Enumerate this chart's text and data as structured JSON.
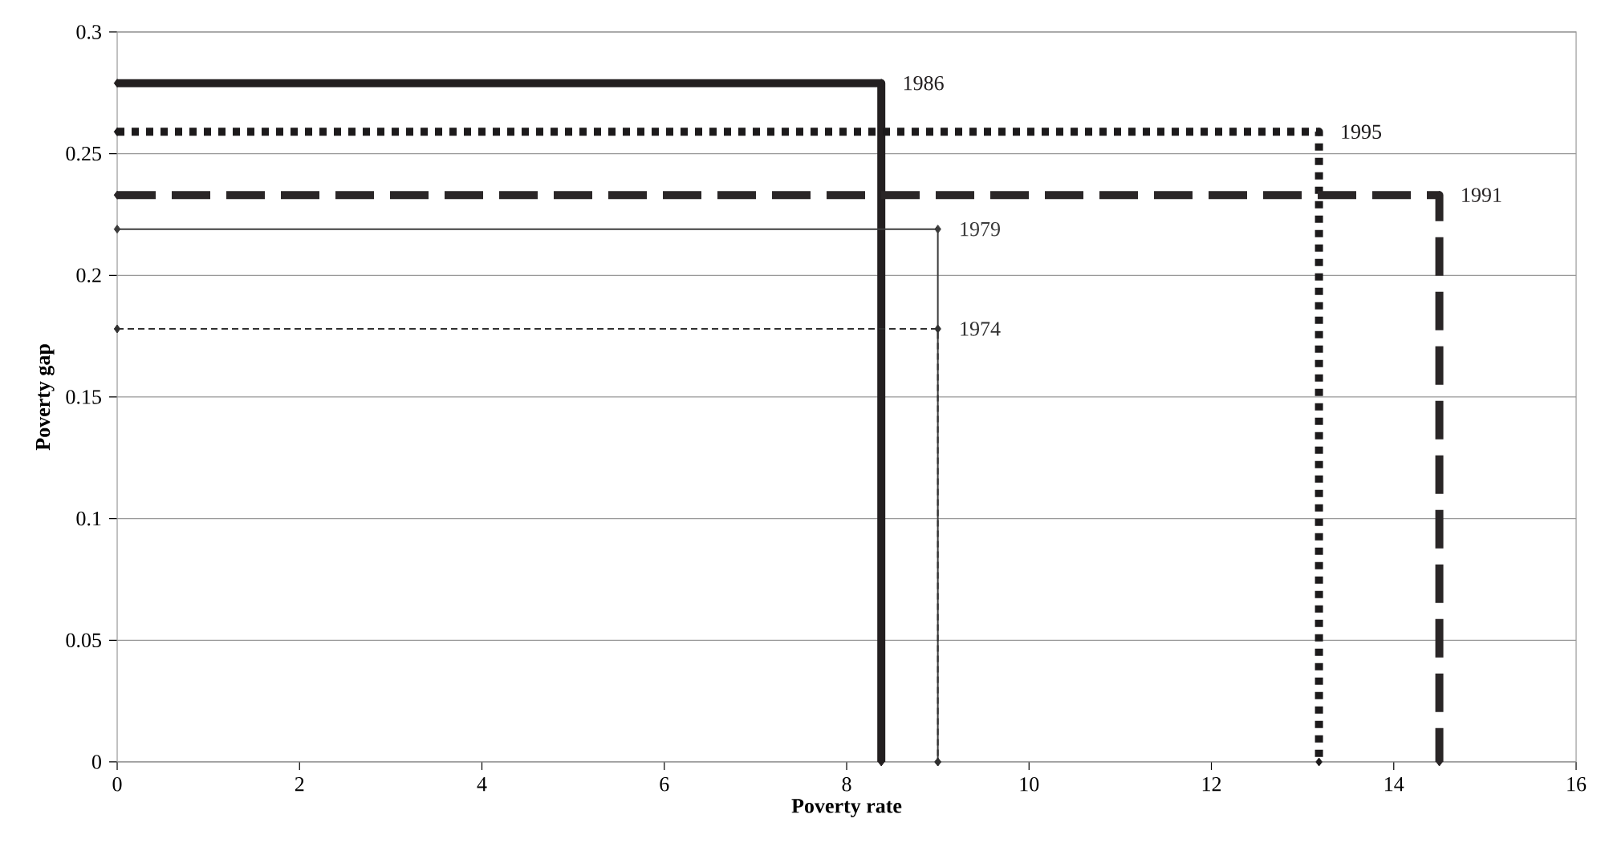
{
  "chart_data": {
    "type": "line",
    "xlabel": "Poverty rate",
    "ylabel": "Poverty gap",
    "xlim": [
      0,
      16
    ],
    "ylim": [
      0,
      0.3
    ],
    "xticks": [
      0,
      2,
      4,
      6,
      8,
      10,
      12,
      14,
      16
    ],
    "yticks": [
      0,
      0.05,
      0.1,
      0.15,
      0.2,
      0.25,
      0.3
    ],
    "grid": "y",
    "marker": "diamond",
    "series": [
      {
        "name": "1986",
        "color": "#231f20",
        "line_style": "solid",
        "x": [
          0,
          8.38,
          8.38
        ],
        "values": [
          0.279,
          0.279,
          0
        ]
      },
      {
        "name": "1995",
        "color": "#1c1a1b",
        "line_style": "dotted",
        "x": [
          0,
          13.18,
          13.18
        ],
        "values": [
          0.259,
          0.259,
          0
        ]
      },
      {
        "name": "1991",
        "color": "#2a2627",
        "line_style": "dashed",
        "x": [
          0,
          14.5,
          14.5
        ],
        "values": [
          0.233,
          0.233,
          0
        ]
      },
      {
        "name": "1979",
        "color": "#3c3c3c",
        "line_style": "solid",
        "x": [
          0,
          9.0,
          9.0
        ],
        "values": [
          0.219,
          0.219,
          0
        ]
      },
      {
        "name": "1974",
        "color": "#303030",
        "line_style": "dashed",
        "x": [
          0,
          9.0,
          9.0
        ],
        "values": [
          0.178,
          0.178,
          0
        ]
      }
    ]
  }
}
